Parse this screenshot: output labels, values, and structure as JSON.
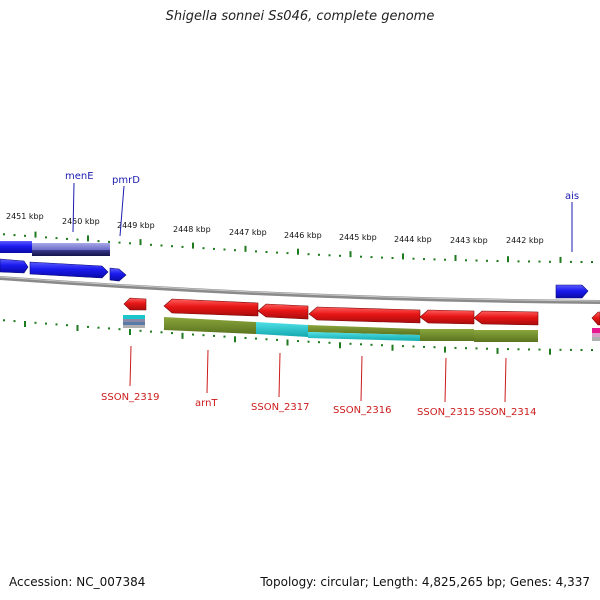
{
  "title": "Shigella sonnei Ss046, complete genome",
  "footer": {
    "accession": "Accession: NC_007384",
    "summary": "Topology: circular; Length: 4,825,265 bp; Genes: 4,337"
  },
  "colors": {
    "forward_gene": "#1a1aee",
    "reverse_gene": "#e81616",
    "annotation_olive": "#6e8a28",
    "annotation_cyan": "#19c6cc",
    "backbone": "#8a8a8a",
    "tick_green": "#1d7a1d",
    "label_blue": "#1c1cb0",
    "label_red": "#cc1b1b"
  },
  "ruler": {
    "labels": [
      "2451 kbp",
      "2450 kbp",
      "2449 kbp",
      "2448 kbp",
      "2447 kbp",
      "2446 kbp",
      "2445 kbp",
      "2444 kbp",
      "2443 kbp",
      "2442 kbp"
    ]
  },
  "forward_genes": {
    "labels": [
      "menE",
      "pmrD",
      "ais"
    ]
  },
  "reverse_genes": {
    "labels": [
      "SSON_2319",
      "arnT",
      "SSON_2317",
      "SSON_2316",
      "SSON_2315",
      "SSON_2314"
    ]
  }
}
